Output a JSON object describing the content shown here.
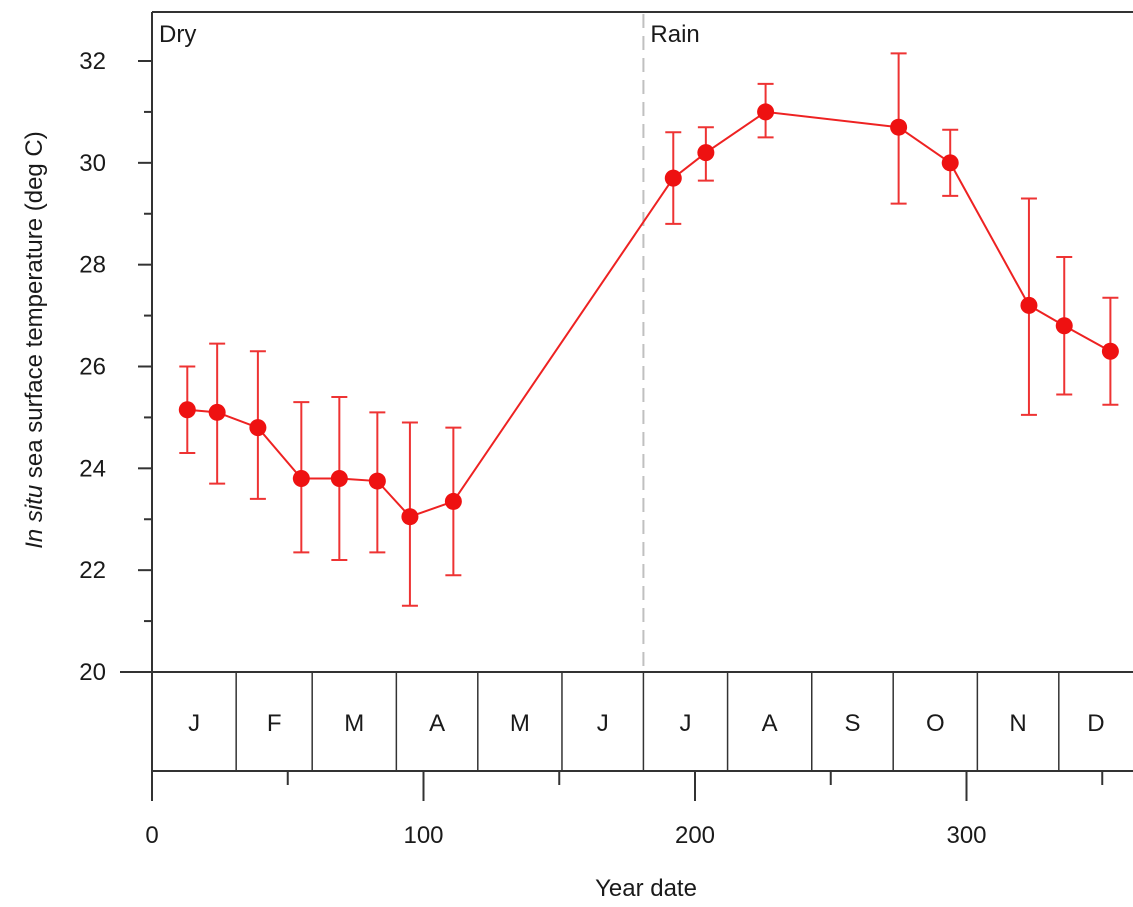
{
  "chart_data": {
    "type": "line",
    "xlabel": "Year date",
    "ylabel_italic": "In situ",
    "ylabel_rest": " sea surface temperature (deg C)",
    "xlim": [
      0,
      360
    ],
    "ylim": [
      20,
      33
    ],
    "xticks": [
      0,
      100,
      200,
      300
    ],
    "yticks": [
      20,
      22,
      24,
      26,
      28,
      30,
      32
    ],
    "grid": false,
    "marker_color": "#ee1111",
    "line_color": "#ee2222",
    "errorbar_color": "#ee3333",
    "annotations": [
      {
        "text": "Dry",
        "x": 0
      },
      {
        "text": "Rain",
        "x": 181
      }
    ],
    "divider_x": 181,
    "months": [
      {
        "label": "J",
        "start": 0,
        "end": 31
      },
      {
        "label": "F",
        "start": 31,
        "end": 59
      },
      {
        "label": "M",
        "start": 59,
        "end": 90
      },
      {
        "label": "A",
        "start": 90,
        "end": 120
      },
      {
        "label": "M",
        "start": 120,
        "end": 151
      },
      {
        "label": "J",
        "start": 151,
        "end": 181
      },
      {
        "label": "J",
        "start": 181,
        "end": 212
      },
      {
        "label": "A",
        "start": 212,
        "end": 243
      },
      {
        "label": "S",
        "start": 243,
        "end": 273
      },
      {
        "label": "O",
        "start": 273,
        "end": 304
      },
      {
        "label": "N",
        "start": 304,
        "end": 334
      },
      {
        "label": "D",
        "start": 334,
        "end": 365
      }
    ],
    "series": [
      {
        "x": [
          13,
          24,
          39,
          55,
          69,
          83,
          95,
          111,
          192,
          204,
          226,
          275,
          294,
          323,
          336,
          353
        ],
        "y": [
          25.15,
          25.1,
          24.8,
          23.8,
          23.8,
          23.75,
          23.05,
          23.35,
          29.7,
          30.2,
          31.0,
          30.7,
          30.0,
          27.2,
          26.8,
          26.3
        ],
        "low": [
          24.3,
          23.7,
          23.4,
          22.35,
          22.2,
          22.35,
          21.3,
          21.9,
          28.8,
          29.65,
          30.5,
          29.2,
          29.35,
          25.05,
          25.45,
          25.25
        ],
        "high": [
          26.0,
          26.45,
          26.3,
          25.3,
          25.4,
          25.1,
          24.9,
          24.8,
          30.6,
          30.7,
          31.55,
          32.15,
          30.65,
          29.3,
          28.15,
          27.35
        ]
      }
    ]
  }
}
